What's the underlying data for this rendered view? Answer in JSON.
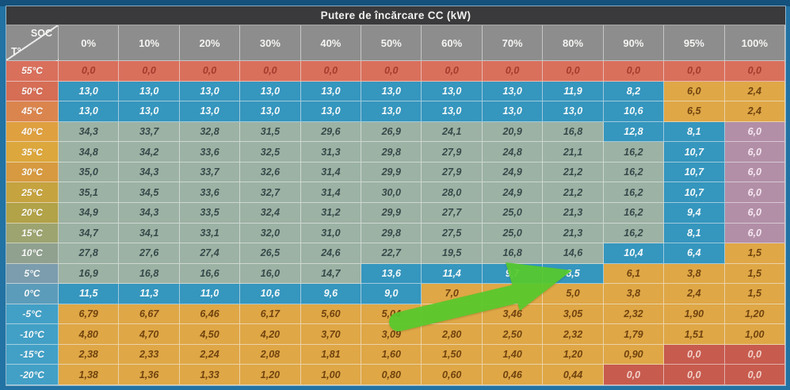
{
  "title": "Putere de încărcare CC (kW)",
  "corner": {
    "top_right": "SOC",
    "bottom_left": "T°"
  },
  "columns": [
    "0%",
    "10%",
    "20%",
    "30%",
    "40%",
    "50%",
    "60%",
    "70%",
    "80%",
    "90%",
    "95%",
    "100%"
  ],
  "palette": {
    "b": {
      "bg": "#3596be",
      "fg": "#f3f8f8"
    },
    "s": {
      "bg": "#9cb2a4",
      "fg": "#37494a"
    },
    "o": {
      "bg": "#dfa746",
      "fg": "#70430f"
    },
    "r": {
      "bg": "#d9705c",
      "fg": "#a43b2c"
    },
    "R": {
      "bg": "#c75b4e",
      "fg": "#f2d1ca"
    },
    "m": {
      "bg": "#b28fa7",
      "fg": "#f5e6f0"
    }
  },
  "rows": [
    {
      "temp": "55°C",
      "label_bg": "#d9705c",
      "colors": "rrrrrrrrrrrr",
      "values": [
        "0,0",
        "0,0",
        "0,0",
        "0,0",
        "0,0",
        "0,0",
        "0,0",
        "0,0",
        "0,0",
        "0,0",
        "0,0",
        "0,0"
      ]
    },
    {
      "temp": "50°C",
      "label_bg": "#d66d55",
      "colors": "bbbbbbbbbboo",
      "values": [
        "13,0",
        "13,0",
        "13,0",
        "13,0",
        "13,0",
        "13,0",
        "13,0",
        "13,0",
        "11,9",
        "8,2",
        "6,0",
        "2,4"
      ]
    },
    {
      "temp": "45°C",
      "label_bg": "#db854e",
      "colors": "bbbbbbbbbboo",
      "values": [
        "13,0",
        "13,0",
        "13,0",
        "13,0",
        "13,0",
        "13,0",
        "13,0",
        "13,0",
        "13,0",
        "10,6",
        "6,5",
        "2,4"
      ]
    },
    {
      "temp": "40°C",
      "label_bg": "#dfa03f",
      "colors": "sssssssssbbm",
      "values": [
        "34,3",
        "33,7",
        "32,8",
        "31,5",
        "29,6",
        "26,9",
        "24,1",
        "20,9",
        "16,8",
        "12,8",
        "8,1",
        "6,0"
      ]
    },
    {
      "temp": "35°C",
      "label_bg": "#dca73c",
      "colors": "ssssssssssbm",
      "values": [
        "34,8",
        "34,2",
        "33,6",
        "32,5",
        "31,3",
        "29,8",
        "27,9",
        "24,8",
        "21,1",
        "16,2",
        "10,7",
        "6,0"
      ]
    },
    {
      "temp": "30°C",
      "label_bg": "#d79a40",
      "colors": "ssssssssssbm",
      "values": [
        "35,0",
        "34,3",
        "33,7",
        "32,6",
        "31,4",
        "29,9",
        "27,9",
        "24,9",
        "21,2",
        "16,2",
        "10,7",
        "6,0"
      ]
    },
    {
      "temp": "25°C",
      "label_bg": "#c5a33f",
      "colors": "ssssssssssbm",
      "values": [
        "35,1",
        "34,5",
        "33,6",
        "32,7",
        "31,4",
        "30,0",
        "28,0",
        "24,9",
        "21,2",
        "16,2",
        "10,7",
        "6,0"
      ]
    },
    {
      "temp": "20°C",
      "label_bg": "#b2a248",
      "colors": "ssssssssssbm",
      "values": [
        "34,9",
        "34,3",
        "33,5",
        "32,4",
        "31,2",
        "29,9",
        "27,7",
        "25,0",
        "21,3",
        "16,2",
        "9,4",
        "6,0"
      ]
    },
    {
      "temp": "15°C",
      "label_bg": "#9da470",
      "colors": "ssssssssssbm",
      "values": [
        "34,7",
        "34,1",
        "33,1",
        "32,0",
        "31,0",
        "29,8",
        "27,5",
        "25,0",
        "21,3",
        "16,2",
        "8,1",
        "6,0"
      ]
    },
    {
      "temp": "10°C",
      "label_bg": "#90a18f",
      "colors": "sssssssssbbo",
      "values": [
        "27,8",
        "27,6",
        "27,4",
        "26,5",
        "24,6",
        "22,7",
        "19,5",
        "16,8",
        "14,6",
        "10,4",
        "6,4",
        "1,5"
      ]
    },
    {
      "temp": "5°C",
      "label_bg": "#7b9dad",
      "colors": "sssssbbbbooo",
      "values": [
        "16,9",
        "16,8",
        "16,6",
        "16,0",
        "14,7",
        "13,6",
        "11,4",
        "9,7",
        "8,5",
        "6,1",
        "3,8",
        "1,5"
      ]
    },
    {
      "temp": "0°C",
      "label_bg": "#5b9cba",
      "colors": "bbbbbboooooo",
      "values": [
        "11,5",
        "11,3",
        "11,0",
        "10,6",
        "9,6",
        "9,0",
        "7,0",
        "",
        "5,0",
        "3,8",
        "2,4",
        "1,5"
      ]
    },
    {
      "temp": "-5°C",
      "label_bg": "#42a0c6",
      "colors": "oooooooooooo",
      "values": [
        "6,79",
        "6,67",
        "6,46",
        "6,17",
        "5,60",
        "5,04",
        "",
        "3,46",
        "3,05",
        "2,32",
        "1,90",
        "1,20"
      ]
    },
    {
      "temp": "-10°C",
      "label_bg": "#42a0c6",
      "colors": "oooooooooooo",
      "values": [
        "4,80",
        "4,70",
        "4,50",
        "4,20",
        "3,70",
        "3,09",
        "2,80",
        "2,50",
        "2,32",
        "1,79",
        "1,51",
        "1,00"
      ]
    },
    {
      "temp": "-15°C",
      "label_bg": "#42a0c6",
      "colors": "ooooooooooRR",
      "values": [
        "2,38",
        "2,33",
        "2,24",
        "2,08",
        "1,81",
        "1,60",
        "1,50",
        "1,40",
        "1,20",
        "0,90",
        "0,0",
        "0,0"
      ]
    },
    {
      "temp": "-20°C",
      "label_bg": "#42a0c6",
      "colors": "oooooooooRRR",
      "values": [
        "1,38",
        "1,36",
        "1,33",
        "1,20",
        "1,00",
        "0,80",
        "0,60",
        "0,46",
        "0,44",
        "0,0",
        "0,0",
        "0,0"
      ]
    }
  ],
  "arrow": {
    "color": "#57c92c",
    "points_at": "cell-5°C-80%"
  }
}
